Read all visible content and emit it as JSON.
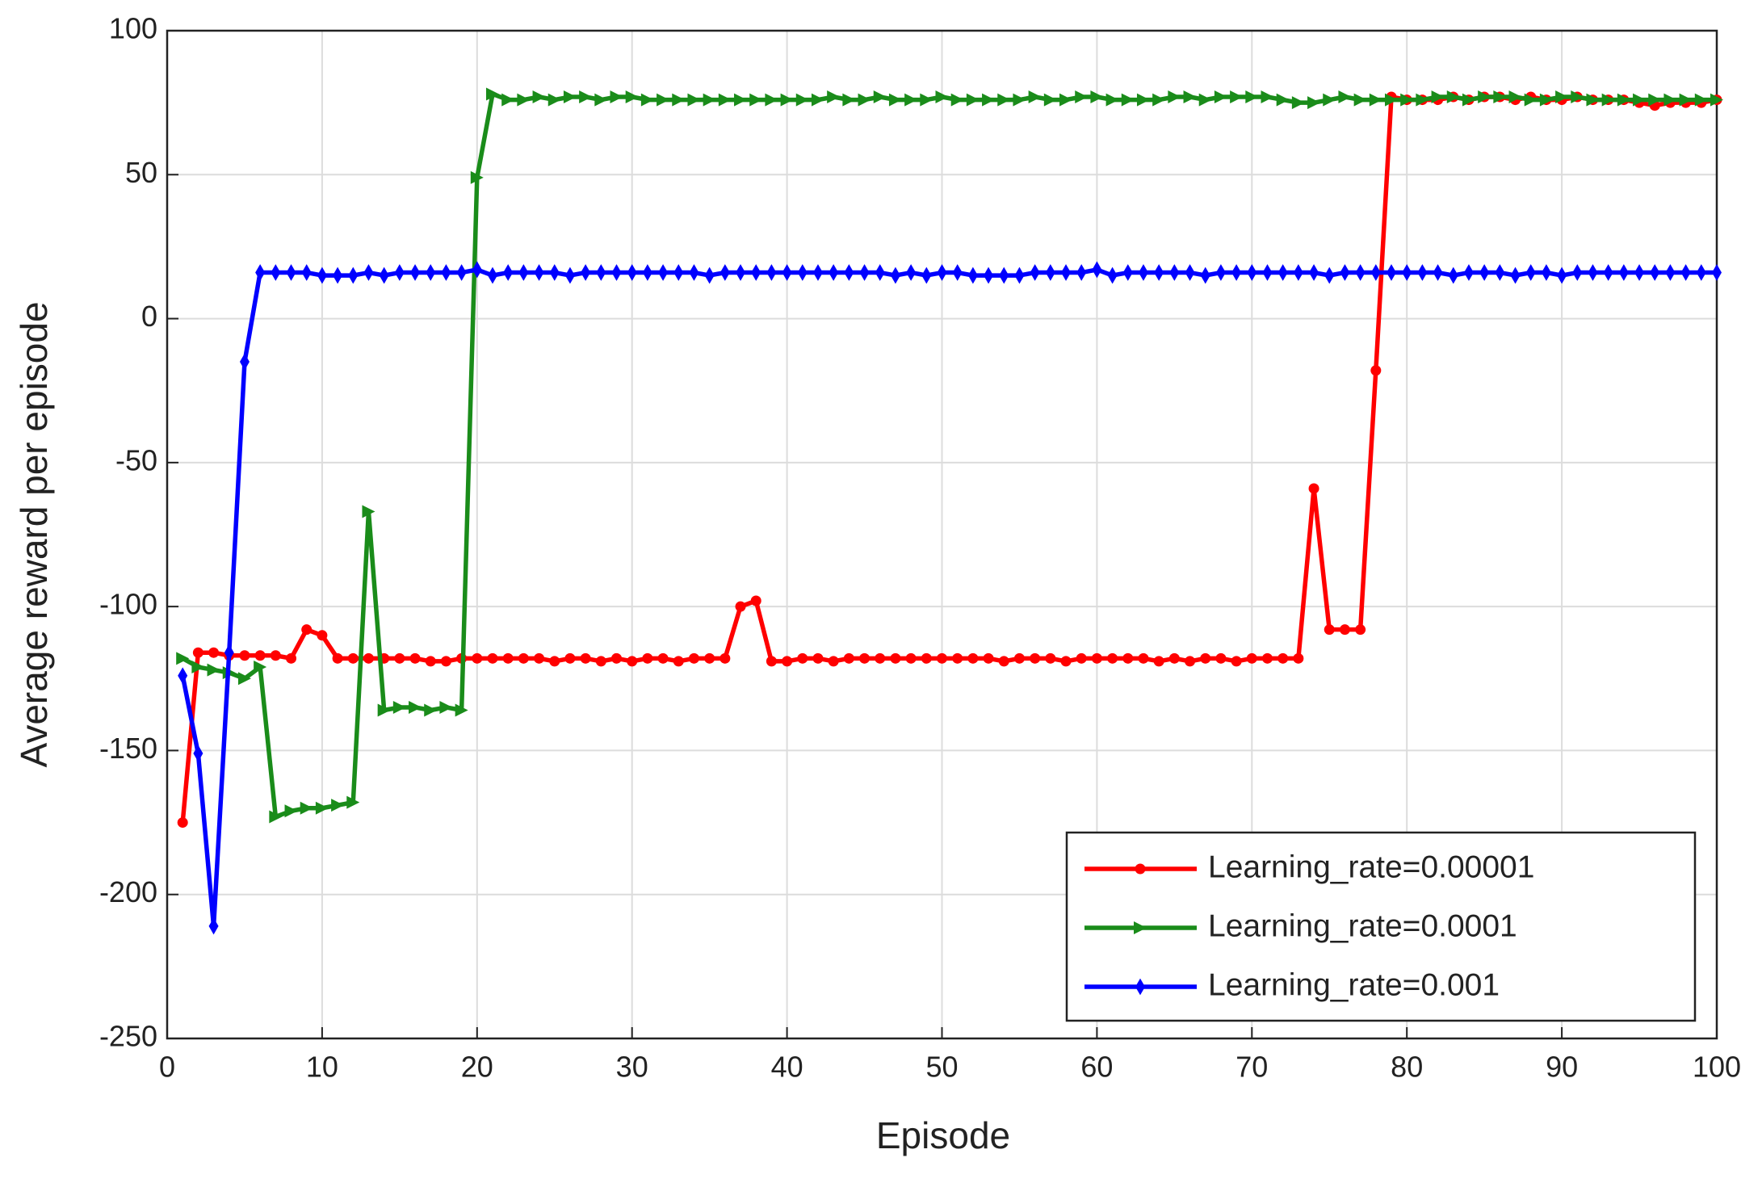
{
  "chart_data": {
    "type": "line",
    "xlabel": "Episode",
    "ylabel": "Average reward per episode",
    "x": [
      1,
      2,
      3,
      4,
      5,
      6,
      7,
      8,
      9,
      10,
      11,
      12,
      13,
      14,
      15,
      16,
      17,
      18,
      19,
      20,
      21,
      22,
      23,
      24,
      25,
      26,
      27,
      28,
      29,
      30,
      31,
      32,
      33,
      34,
      35,
      36,
      37,
      38,
      39,
      40,
      41,
      42,
      43,
      44,
      45,
      46,
      47,
      48,
      49,
      50,
      51,
      52,
      53,
      54,
      55,
      56,
      57,
      58,
      59,
      60,
      61,
      62,
      63,
      64,
      65,
      66,
      67,
      68,
      69,
      70,
      71,
      72,
      73,
      74,
      75,
      76,
      77,
      78,
      79,
      80,
      81,
      82,
      83,
      84,
      85,
      86,
      87,
      88,
      89,
      90,
      91,
      92,
      93,
      94,
      95,
      96,
      97,
      98,
      99,
      100
    ],
    "series": [
      {
        "name": "Learning_rate=0.00001",
        "color": "#ff0000",
        "marker": "circle",
        "values": [
          -175,
          -116,
          -116,
          -117,
          -117,
          -117,
          -117,
          -118,
          -108,
          -110,
          -118,
          -118,
          -118,
          -118,
          -118,
          -118,
          -119,
          -119,
          -118,
          -118,
          -118,
          -118,
          -118,
          -118,
          -119,
          -118,
          -118,
          -119,
          -118,
          -119,
          -118,
          -118,
          -119,
          -118,
          -118,
          -118,
          -100,
          -98,
          -119,
          -119,
          -118,
          -118,
          -119,
          -118,
          -118,
          -118,
          -118,
          -118,
          -118,
          -118,
          -118,
          -118,
          -118,
          -119,
          -118,
          -118,
          -118,
          -119,
          -118,
          -118,
          -118,
          -118,
          -118,
          -119,
          -118,
          -119,
          -118,
          -118,
          -119,
          -118,
          -118,
          -118,
          -118,
          -59,
          -108,
          -108,
          -108,
          -18,
          77,
          76,
          76,
          76,
          77,
          76,
          77,
          77,
          76,
          77,
          76,
          76,
          77,
          76,
          76,
          76,
          75,
          74,
          75,
          75,
          75,
          76
        ]
      },
      {
        "name": "Learning_rate=0.0001",
        "color": "#1a8c1a",
        "marker": "triangle-right",
        "values": [
          -118,
          -121,
          -122,
          -123,
          -125,
          -121,
          -173,
          -171,
          -170,
          -170,
          -169,
          -168,
          -67,
          -136,
          -135,
          -135,
          -136,
          -135,
          -136,
          49,
          78,
          76,
          76,
          77,
          76,
          77,
          77,
          76,
          77,
          77,
          76,
          76,
          76,
          76,
          76,
          76,
          76,
          76,
          76,
          76,
          76,
          76,
          77,
          76,
          76,
          77,
          76,
          76,
          76,
          77,
          76,
          76,
          76,
          76,
          76,
          77,
          76,
          76,
          77,
          77,
          76,
          76,
          76,
          76,
          77,
          77,
          76,
          77,
          77,
          77,
          77,
          76,
          75,
          75,
          76,
          77,
          76,
          76,
          76,
          76,
          76,
          77,
          77,
          76,
          77,
          77,
          77,
          76,
          76,
          77,
          77,
          76,
          76,
          76,
          76,
          76,
          76,
          76,
          76,
          76
        ]
      },
      {
        "name": "Learning_rate=0.001",
        "color": "#0000ff",
        "marker": "diamond",
        "values": [
          -124,
          -151,
          -211,
          -116,
          -15,
          16,
          16,
          16,
          16,
          15,
          15,
          15,
          16,
          15,
          16,
          16,
          16,
          16,
          16,
          17,
          15,
          16,
          16,
          16,
          16,
          15,
          16,
          16,
          16,
          16,
          16,
          16,
          16,
          16,
          15,
          16,
          16,
          16,
          16,
          16,
          16,
          16,
          16,
          16,
          16,
          16,
          15,
          16,
          15,
          16,
          16,
          15,
          15,
          15,
          15,
          16,
          16,
          16,
          16,
          17,
          15,
          16,
          16,
          16,
          16,
          16,
          15,
          16,
          16,
          16,
          16,
          16,
          16,
          16,
          15,
          16,
          16,
          16,
          16,
          16,
          16,
          16,
          15,
          16,
          16,
          16,
          15,
          16,
          16,
          15,
          16,
          16,
          16,
          16,
          16,
          16,
          16,
          16,
          16,
          16
        ]
      }
    ],
    "xlim": [
      0,
      100
    ],
    "xticks": [
      0,
      10,
      20,
      30,
      40,
      50,
      60,
      70,
      80,
      90,
      100
    ],
    "ylim": [
      -250,
      100
    ],
    "yticks": [
      -250,
      -200,
      -150,
      -100,
      -50,
      0,
      50,
      100
    ],
    "grid": true,
    "legend": "lower right"
  }
}
